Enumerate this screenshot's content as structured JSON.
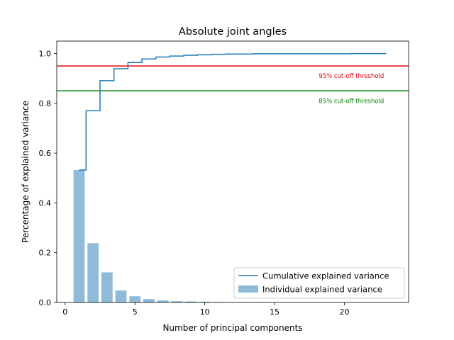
{
  "chart_data": {
    "type": "bar",
    "title": "Absolute joint angles",
    "xlabel": "Number of principal components",
    "ylabel": "Percentage of explained variance",
    "xlim": [
      -0.6,
      24.6
    ],
    "ylim": [
      0,
      1.05
    ],
    "xticks": [
      0,
      5,
      10,
      15,
      20
    ],
    "yticks": [
      0.0,
      0.2,
      0.4,
      0.6,
      0.8,
      1.0
    ],
    "xtick_labels": [
      "0",
      "5",
      "10",
      "15",
      "20"
    ],
    "ytick_labels": [
      "0.0",
      "0.2",
      "0.4",
      "0.6",
      "0.8",
      "1.0"
    ],
    "x": [
      1,
      2,
      3,
      4,
      5,
      6,
      7,
      8,
      9,
      10,
      11,
      12,
      13,
      14,
      15,
      16,
      17,
      18,
      19,
      20,
      21,
      22,
      23
    ],
    "series": [
      {
        "name": "Individual explained variance",
        "type": "bar",
        "color": "#1f77b4",
        "values": [
          0.532,
          0.238,
          0.121,
          0.048,
          0.025,
          0.014,
          0.008,
          0.005,
          0.004,
          0.003,
          0.002,
          0.001,
          0.001,
          0.001,
          0.001,
          0.0005,
          0.0005,
          0.0005,
          0.0005,
          0.0005,
          0.0005,
          0.0005,
          0.0005
        ]
      },
      {
        "name": "Cumulative explained variance",
        "type": "step",
        "color": "#1f77b4",
        "values": [
          0.532,
          0.77,
          0.891,
          0.939,
          0.964,
          0.978,
          0.986,
          0.99,
          0.993,
          0.995,
          0.997,
          0.998,
          0.998,
          0.999,
          0.999,
          0.999,
          0.999,
          0.999,
          0.999,
          0.999,
          1.0,
          1.0,
          1.0
        ]
      }
    ],
    "thresholds": [
      {
        "value": 0.95,
        "label": "95% cut-off threshold",
        "color": "#e00000"
      },
      {
        "value": 0.85,
        "label": "85% cut-off threshold",
        "color": "#008000"
      }
    ],
    "legend": {
      "placement": "lower right",
      "entries": [
        "Cumulative explained variance",
        "Individual explained variance"
      ]
    },
    "grid": false
  }
}
